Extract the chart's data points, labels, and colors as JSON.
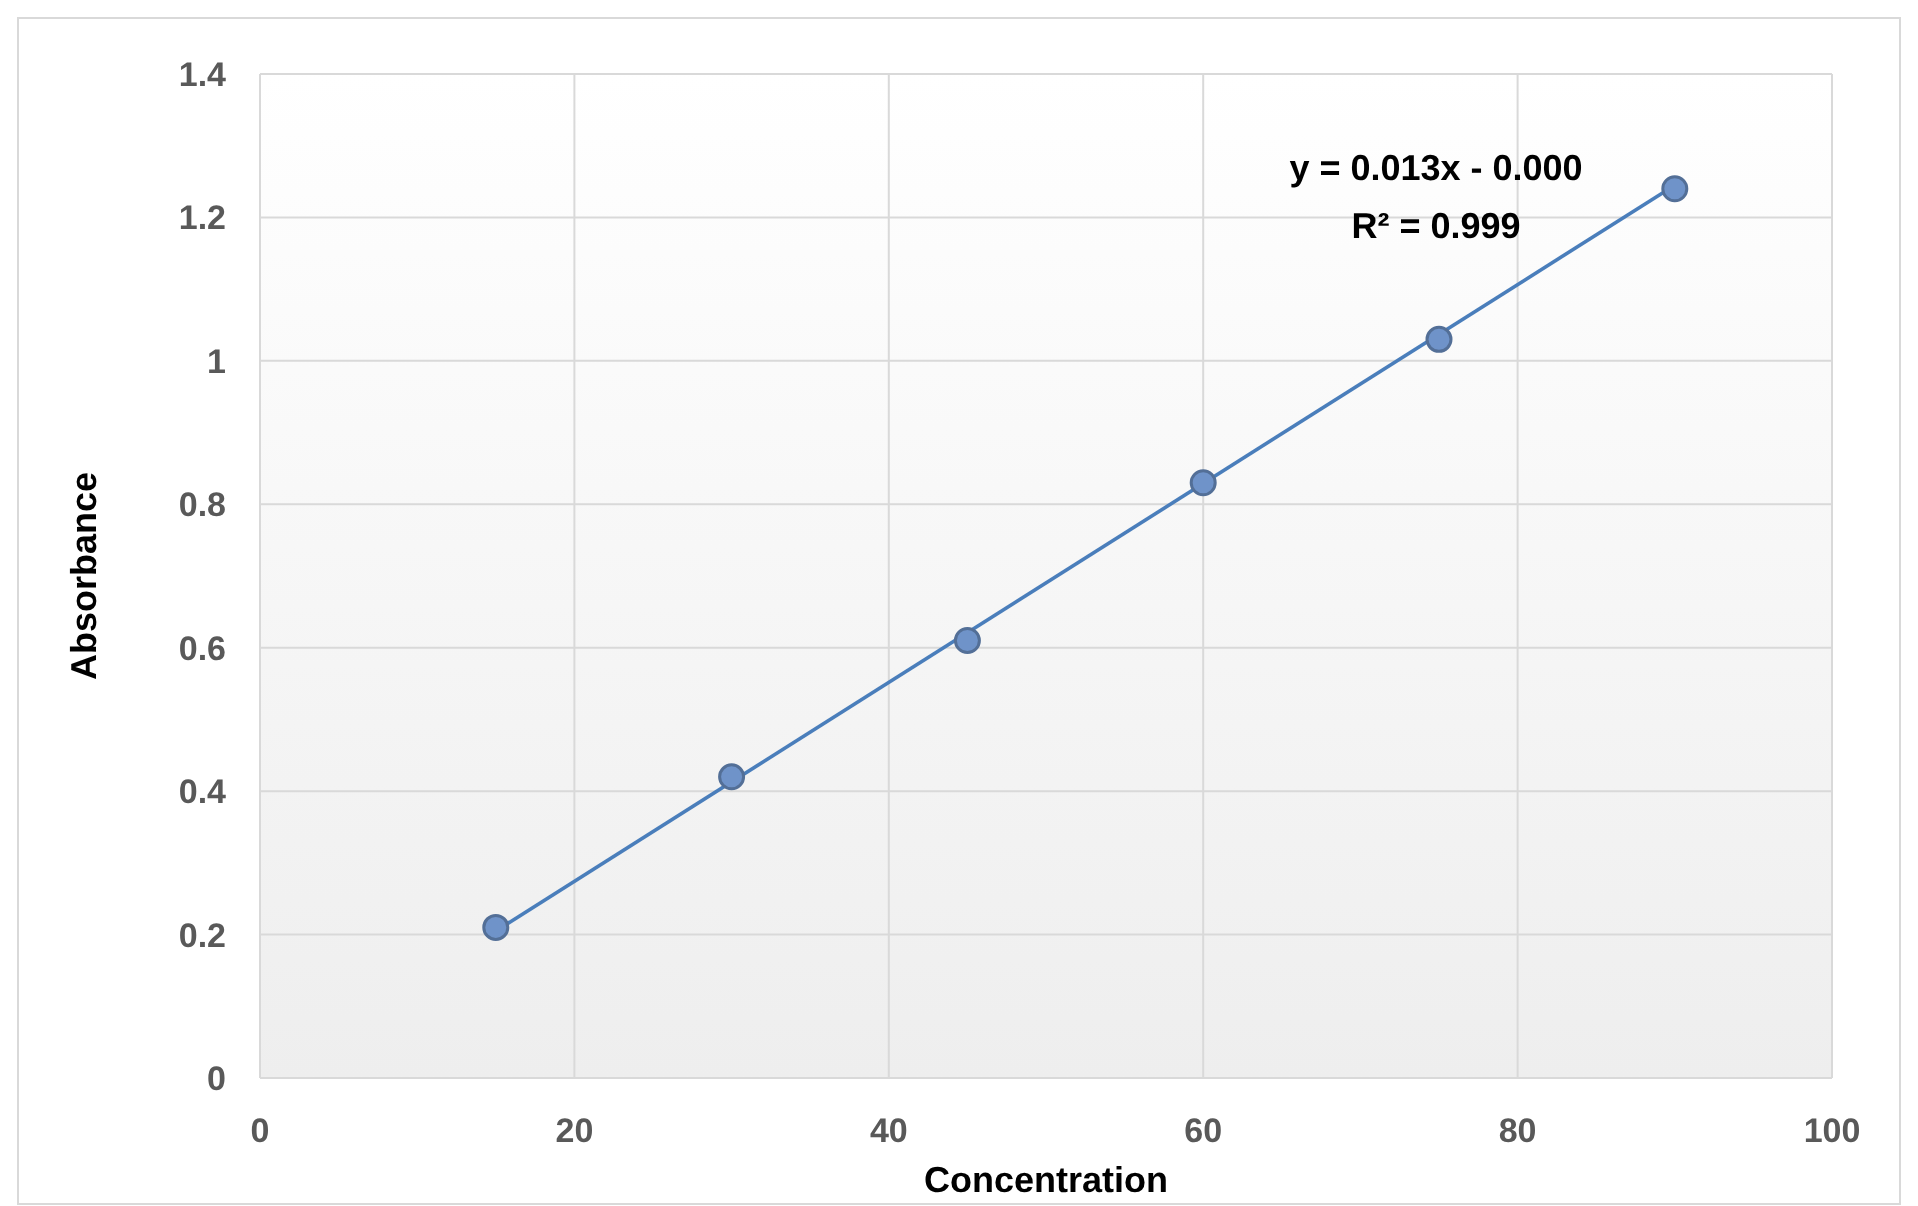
{
  "chart_data": {
    "type": "scatter",
    "xlabel": "Concentration",
    "ylabel": "Absorbance",
    "xlim": [
      0,
      100
    ],
    "xticks": [
      0,
      20,
      40,
      60,
      80,
      100
    ],
    "ylim": [
      0,
      1.4
    ],
    "yticks": [
      0,
      0.2,
      0.4,
      0.6,
      0.8,
      1,
      1.2,
      1.4
    ],
    "grid": true,
    "marker": "circle",
    "x": [
      15,
      30,
      45,
      60,
      75,
      90
    ],
    "series": [
      {
        "color": "#6f93c9",
        "values": [
          0.21,
          0.42,
          0.61,
          0.83,
          1.03,
          1.24
        ]
      },
      {
        "type": "line",
        "color": "#4a7ebb",
        "x": [
          15,
          90
        ],
        "values": [
          0.205,
          1.245
        ],
        "marker": "none",
        "line_style": "solid"
      }
    ],
    "annotations": [
      "y = 0.013x - 0.000",
      "R² = 0.999"
    ]
  }
}
